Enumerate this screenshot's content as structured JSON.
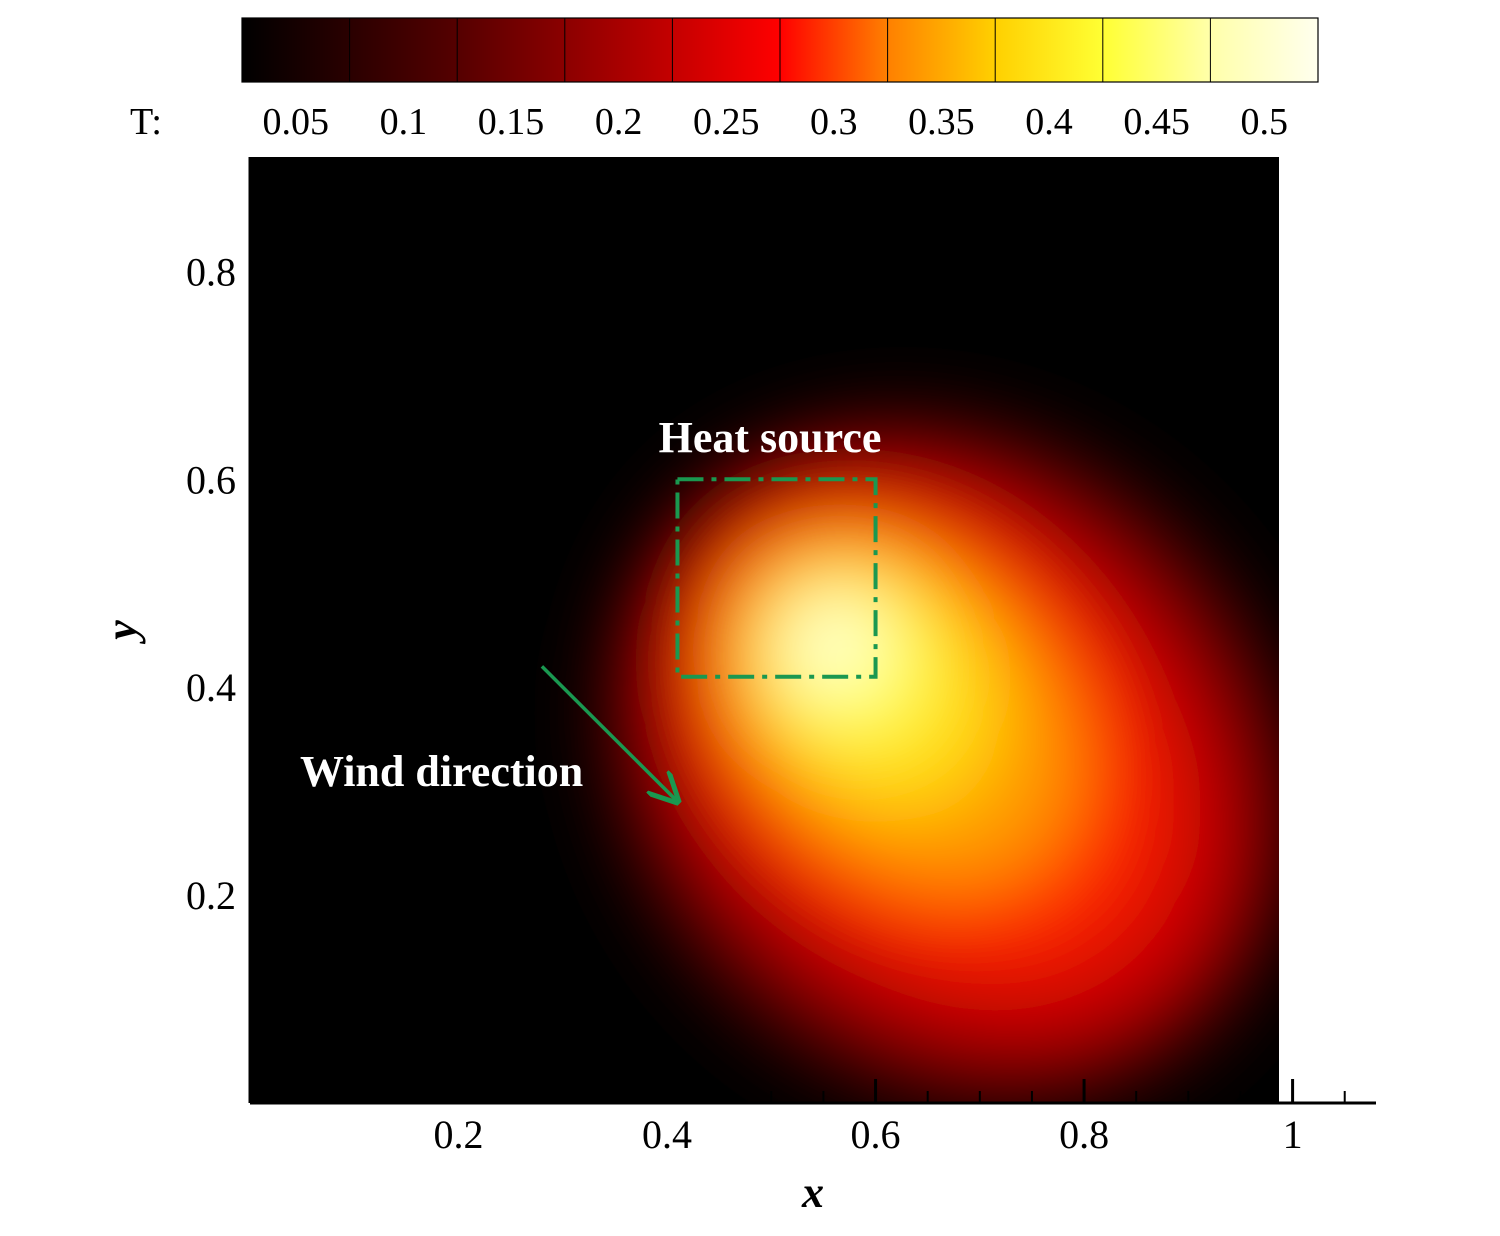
{
  "chart_data": {
    "type": "heatmap",
    "field": "T",
    "xlabel": "x",
    "ylabel": "y",
    "xlim": [
      0.0,
      1.08
    ],
    "ylim": [
      0.0,
      0.91
    ],
    "field_extent": {
      "x": [
        0.0,
        0.99
      ],
      "y": [
        0.0,
        0.91
      ]
    },
    "x_ticks": [
      0.2,
      0.4,
      0.6,
      0.8,
      1.0
    ],
    "x_tick_labels": [
      "0.2",
      "0.4",
      "0.6",
      "0.8",
      "1"
    ],
    "y_ticks": [
      0.2,
      0.4,
      0.6,
      0.8
    ],
    "y_tick_labels": [
      "0.2",
      "0.4",
      "0.6",
      "0.8"
    ],
    "colorbar": {
      "title": "T:",
      "placement": "top",
      "levels": [
        0.025,
        0.075,
        0.125,
        0.175,
        0.225,
        0.275,
        0.325,
        0.375,
        0.425,
        0.475,
        0.525
      ],
      "label_values": [
        0.05,
        0.1,
        0.15,
        0.2,
        0.25,
        0.3,
        0.35,
        0.4,
        0.45,
        0.5
      ],
      "labels": [
        "0.05",
        "0.1",
        "0.15",
        "0.2",
        "0.25",
        "0.3",
        "0.35",
        "0.4",
        "0.45",
        "0.5"
      ],
      "colors": [
        "#000000",
        "#2a0000",
        "#550000",
        "#8b0000",
        "#c40000",
        "#ff0000",
        "#ff8000",
        "#ffd000",
        "#ffff33",
        "#ffffaa",
        "#ffffee"
      ]
    },
    "plume": {
      "peak_value": 0.52,
      "peak_location": [
        0.56,
        0.44
      ],
      "axis_direction": [
        0.62,
        -0.47
      ],
      "tail_end": [
        0.93,
        0.07
      ]
    },
    "annotations": [
      {
        "id": "heat-source",
        "text": "Heat source",
        "region": {
          "x": [
            0.41,
            0.6
          ],
          "y": [
            0.41,
            0.6
          ]
        },
        "color": "#1a9850"
      },
      {
        "id": "wind",
        "text": "Wind direction",
        "arrow_from": [
          0.28,
          0.42
        ],
        "arrow_to": [
          0.41,
          0.29
        ],
        "color": "#1a9850"
      }
    ],
    "grid": false
  }
}
